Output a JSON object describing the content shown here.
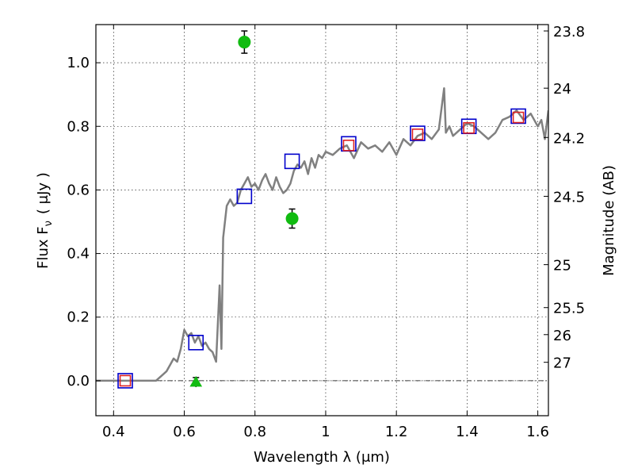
{
  "chart_data": {
    "type": "scatter",
    "xlabel": "Wavelength  λ (μm)",
    "ylabel_left": "Flux  F",
    "ylabel_left_sub": "ν",
    "ylabel_left_unit": "( μJy )",
    "ylabel_right": "Magnitude (AB)",
    "xlim": [
      0.35,
      1.63
    ],
    "ylim": [
      -0.11,
      1.12
    ],
    "grid": true,
    "x_ticks": [
      0.4,
      0.6,
      0.8,
      1.0,
      1.2,
      1.4,
      1.6
    ],
    "x_tick_labels": [
      "0.4",
      "0.6",
      "0.8",
      "1",
      "1.2",
      "1.4",
      "1.6"
    ],
    "y_ticks": [
      0.0,
      0.2,
      0.4,
      0.6,
      0.8,
      1.0
    ],
    "y_tick_labels": [
      "0.0",
      "0.2",
      "0.4",
      "0.6",
      "0.8",
      "1.0"
    ],
    "right_ticks": [
      {
        "flux": 1.1,
        "label": "23.8"
      },
      {
        "flux": 0.92,
        "label": "24"
      },
      {
        "flux": 0.765,
        "label": "24.2"
      },
      {
        "flux": 0.58,
        "label": "24.5"
      },
      {
        "flux": 0.365,
        "label": "25"
      },
      {
        "flux": 0.23,
        "label": "25.5"
      },
      {
        "flux": 0.145,
        "label": "26"
      },
      {
        "flux": 0.058,
        "label": "27"
      }
    ],
    "zero_line": 0.0,
    "series": [
      {
        "kind": "line",
        "color": "#808080",
        "x": [
          0.35,
          0.4,
          0.45,
          0.5,
          0.52,
          0.54,
          0.55,
          0.56,
          0.57,
          0.58,
          0.59,
          0.6,
          0.61,
          0.62,
          0.63,
          0.64,
          0.65,
          0.66,
          0.67,
          0.68,
          0.69,
          0.7,
          0.705,
          0.71,
          0.72,
          0.73,
          0.74,
          0.75,
          0.76,
          0.77,
          0.78,
          0.79,
          0.8,
          0.81,
          0.82,
          0.83,
          0.84,
          0.85,
          0.86,
          0.87,
          0.88,
          0.89,
          0.9,
          0.91,
          0.92,
          0.93,
          0.94,
          0.95,
          0.96,
          0.97,
          0.98,
          0.99,
          1.0,
          1.02,
          1.04,
          1.06,
          1.08,
          1.1,
          1.12,
          1.14,
          1.16,
          1.18,
          1.2,
          1.22,
          1.24,
          1.26,
          1.28,
          1.3,
          1.32,
          1.335,
          1.34,
          1.35,
          1.36,
          1.38,
          1.4,
          1.42,
          1.44,
          1.46,
          1.48,
          1.5,
          1.52,
          1.54,
          1.56,
          1.58,
          1.6,
          1.61,
          1.62,
          1.63
        ],
        "y": [
          0.0,
          0.0,
          0.0,
          0.0,
          0.0,
          0.02,
          0.03,
          0.05,
          0.07,
          0.06,
          0.1,
          0.16,
          0.14,
          0.15,
          0.12,
          0.14,
          0.11,
          0.12,
          0.1,
          0.09,
          0.06,
          0.3,
          0.1,
          0.45,
          0.55,
          0.57,
          0.55,
          0.56,
          0.6,
          0.62,
          0.64,
          0.61,
          0.62,
          0.6,
          0.63,
          0.65,
          0.62,
          0.6,
          0.64,
          0.61,
          0.59,
          0.6,
          0.62,
          0.66,
          0.68,
          0.67,
          0.69,
          0.65,
          0.7,
          0.67,
          0.71,
          0.7,
          0.72,
          0.71,
          0.73,
          0.74,
          0.7,
          0.75,
          0.73,
          0.74,
          0.72,
          0.75,
          0.71,
          0.76,
          0.74,
          0.77,
          0.78,
          0.76,
          0.79,
          0.92,
          0.78,
          0.8,
          0.77,
          0.79,
          0.81,
          0.8,
          0.78,
          0.76,
          0.78,
          0.82,
          0.83,
          0.85,
          0.82,
          0.84,
          0.8,
          0.82,
          0.76,
          0.85
        ]
      },
      {
        "kind": "square",
        "stroke": "#0000cc",
        "points": [
          {
            "x": 0.433,
            "y": 0.0
          },
          {
            "x": 0.633,
            "y": 0.12
          },
          {
            "x": 0.77,
            "y": 0.58
          },
          {
            "x": 0.905,
            "y": 0.69
          },
          {
            "x": 1.065,
            "y": 0.745
          },
          {
            "x": 1.26,
            "y": 0.778
          },
          {
            "x": 1.405,
            "y": 0.8
          },
          {
            "x": 1.545,
            "y": 0.832
          }
        ]
      },
      {
        "kind": "square",
        "stroke": "#dd2222",
        "points": [
          {
            "x": 0.433,
            "y": 0.0
          },
          {
            "x": 1.065,
            "y": 0.74
          },
          {
            "x": 1.26,
            "y": 0.775
          },
          {
            "x": 1.405,
            "y": 0.795
          },
          {
            "x": 1.545,
            "y": 0.828
          }
        ]
      },
      {
        "kind": "circle",
        "fill": "#11bb11",
        "points": [
          {
            "x": 0.77,
            "y": 1.065,
            "err": 0.035
          },
          {
            "x": 0.905,
            "y": 0.51,
            "err": 0.03
          }
        ]
      },
      {
        "kind": "triangle",
        "fill": "#11bb11",
        "points": [
          {
            "x": 0.633,
            "y": -0.005,
            "err": 0.015
          }
        ]
      }
    ]
  }
}
